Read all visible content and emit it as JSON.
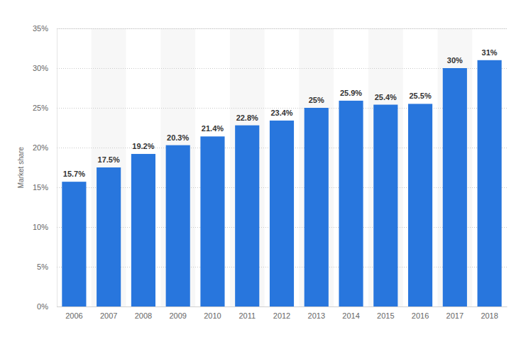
{
  "chart_data": {
    "type": "bar",
    "y_label": "Market share",
    "categories": [
      "2006",
      "2007",
      "2008",
      "2009",
      "2010",
      "2011",
      "2012",
      "2013",
      "2014",
      "2015",
      "2016",
      "2017",
      "2018"
    ],
    "values": [
      15.7,
      17.5,
      19.2,
      20.3,
      21.4,
      22.8,
      23.4,
      25,
      25.9,
      25.4,
      25.5,
      30,
      31
    ],
    "value_labels": [
      "15.7%",
      "17.5%",
      "19.2%",
      "20.3%",
      "21.4%",
      "22.8%",
      "23.4%",
      "25%",
      "25.9%",
      "25.4%",
      "25.5%",
      "30%",
      "31%"
    ],
    "color": "#2876dd",
    "ylim": [
      0,
      35
    ],
    "yticks": [
      {
        "value": 0,
        "label": "0%"
      },
      {
        "value": 5,
        "label": "5%"
      },
      {
        "value": 10,
        "label": "10%"
      },
      {
        "value": 15,
        "label": "15%"
      },
      {
        "value": 20,
        "label": "20%"
      },
      {
        "value": 25,
        "label": "25%"
      },
      {
        "value": 30,
        "label": "30%"
      },
      {
        "value": 35,
        "label": "35%"
      }
    ],
    "grid": true,
    "data_labels": true
  }
}
